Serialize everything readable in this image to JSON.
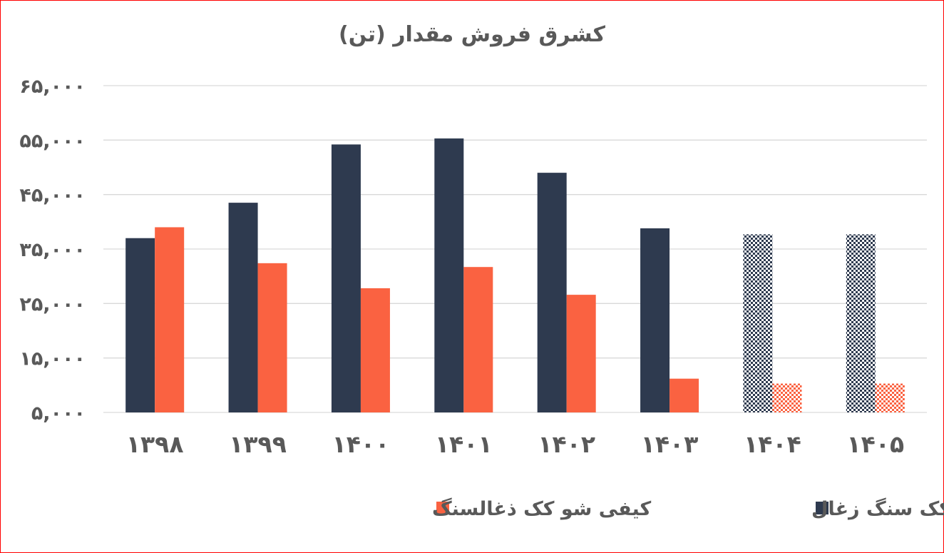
{
  "chart_data": {
    "type": "bar",
    "title": "(تن) کشرق فروش مقدار",
    "categories": [
      "۱۳۹۸",
      "۱۳۹۹",
      "۱۴۰۰",
      "۱۴۰۱",
      "۱۴۰۲",
      "۱۴۰۳",
      "۱۴۰۴",
      "۱۴۰۵"
    ],
    "y_ticks": [
      5000,
      15000,
      25000,
      35000,
      45000,
      55000,
      65000
    ],
    "y_tick_labels": [
      "۵,۰۰۰",
      "۱۵,۰۰۰",
      "۲۵,۰۰۰",
      "۳۵,۰۰۰",
      "۴۵,۰۰۰",
      "۵۵,۰۰۰",
      "۶۵,۰۰۰"
    ],
    "ylim": [
      5000,
      65000
    ],
    "grid": true,
    "legend_position": "bottom",
    "series": [
      {
        "name": "یک درجه کیفی شو کک سنگ زغال",
        "color": "#2e3a4f",
        "values": [
          37000,
          43500,
          54200,
          55300,
          49000,
          38800,
          37700,
          37700
        ],
        "forecast": [
          false,
          false,
          false,
          false,
          false,
          false,
          true,
          true
        ]
      },
      {
        "name": "کیفی شو کک ذغالسنگ",
        "color": "#fa6241",
        "values": [
          39000,
          32400,
          27800,
          31700,
          26600,
          11200,
          10300,
          10300
        ],
        "forecast": [
          false,
          false,
          false,
          false,
          false,
          false,
          true,
          true
        ]
      }
    ]
  }
}
